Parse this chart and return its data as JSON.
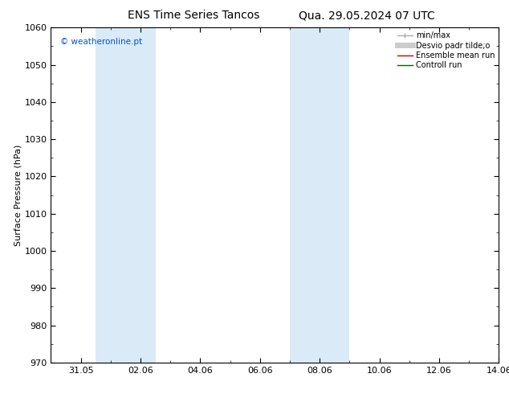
{
  "title_left": "ENS Time Series Tancos",
  "title_right": "Qua. 29.05.2024 07 UTC",
  "ylabel": "Surface Pressure (hPa)",
  "ylim": [
    970,
    1060
  ],
  "yticks": [
    970,
    980,
    990,
    1000,
    1010,
    1020,
    1030,
    1040,
    1050,
    1060
  ],
  "xlim": [
    0,
    15
  ],
  "x_tick_labels": [
    "31.05",
    "02.06",
    "04.06",
    "06.06",
    "08.06",
    "10.06",
    "12.06",
    "14.06"
  ],
  "x_tick_positions": [
    1.0,
    3.0,
    5.0,
    7.0,
    9.0,
    11.0,
    13.0,
    15.0
  ],
  "shaded_regions": [
    {
      "xmin": 1.5,
      "xmax": 3.5,
      "color": "#daeaf7"
    },
    {
      "xmin": 8.0,
      "xmax": 10.0,
      "color": "#daeaf7"
    }
  ],
  "watermark_text": "© weatheronline.pt",
  "watermark_color": "#0055cc",
  "background_color": "#ffffff",
  "legend_fontsize": 7,
  "title_fontsize": 10,
  "axis_label_fontsize": 8,
  "tick_fontsize": 8,
  "legend_min_max_color": "#aaaaaa",
  "legend_std_color": "#cccccc",
  "legend_mean_color": "#cc0000",
  "legend_control_color": "#006600"
}
